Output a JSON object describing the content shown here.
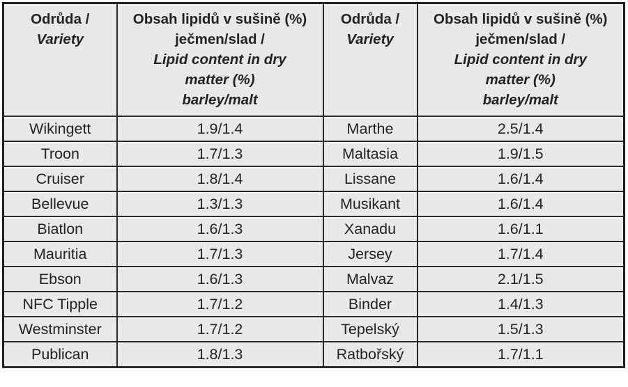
{
  "table": {
    "header": {
      "variety": {
        "line1": "Odrůda /",
        "line2": "Variety"
      },
      "lipid": {
        "line1": "Obsah lipidů v sušině (%)",
        "line2": "ječmen/slad /",
        "line3": "Lipid content in dry",
        "line4": "matter (%)",
        "line5": "barley/malt"
      }
    },
    "rows": [
      {
        "variety_l": "Wikingett",
        "lipid_l": "1.9/1.4",
        "variety_r": "Marthe",
        "lipid_r": "2.5/1.4"
      },
      {
        "variety_l": "Troon",
        "lipid_l": "1.7/1.3",
        "variety_r": "Maltasia",
        "lipid_r": "1.9/1.5"
      },
      {
        "variety_l": "Cruiser",
        "lipid_l": "1.8/1.4",
        "variety_r": "Lissane",
        "lipid_r": "1.6/1.4"
      },
      {
        "variety_l": "Bellevue",
        "lipid_l": "1.3/1.3",
        "variety_r": "Musikant",
        "lipid_r": "1.6/1.4"
      },
      {
        "variety_l": "Biatlon",
        "lipid_l": "1.6/1.3",
        "variety_r": "Xanadu",
        "lipid_r": "1.6/1.1"
      },
      {
        "variety_l": "Mauritia",
        "lipid_l": "1.7/1.3",
        "variety_r": "Jersey",
        "lipid_r": "1.7/1.4"
      },
      {
        "variety_l": "Ebson",
        "lipid_l": "1.6/1.3",
        "variety_r": "Malvaz",
        "lipid_r": "2.1/1.5"
      },
      {
        "variety_l": "NFC Tipple",
        "lipid_l": "1.7/1.2",
        "variety_r": "Binder",
        "lipid_r": "1.4/1.3"
      },
      {
        "variety_l": "Westminster",
        "lipid_l": "1.7/1.2",
        "variety_r": "Tepelský",
        "lipid_r": "1.5/1.3"
      },
      {
        "variety_l": "Publican",
        "lipid_l": "1.8/1.3",
        "variety_r": "Ratbořský",
        "lipid_r": "1.7/1.1"
      }
    ]
  },
  "colors": {
    "cell_background": "#e8e8e8",
    "border": "#2a2a2e",
    "text": "#222227",
    "page_background": "#ffffff"
  }
}
